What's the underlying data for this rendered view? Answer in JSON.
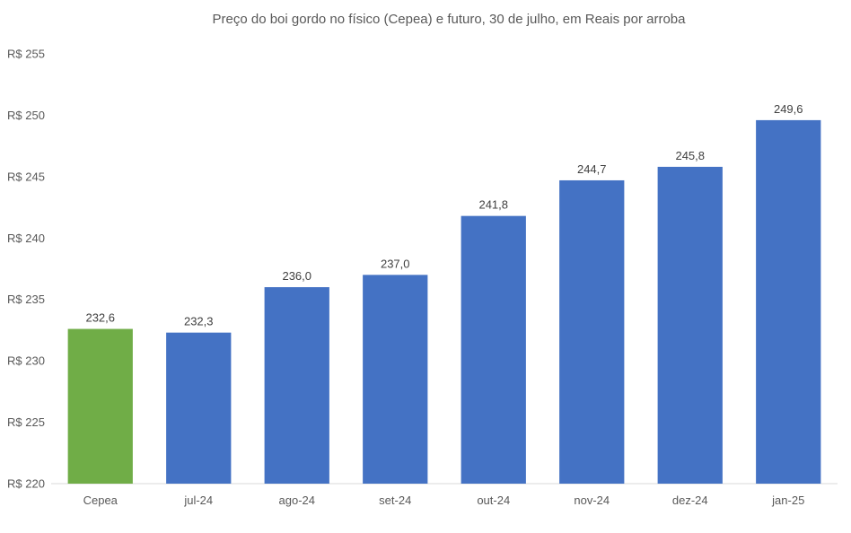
{
  "chart_data": {
    "type": "bar",
    "title": "Preço do boi gordo no físico (Cepea) e futuro, 30 de julho, em Reais por arroba",
    "xlabel": "",
    "ylabel": "",
    "categories": [
      "Cepea",
      "jul-24",
      "ago-24",
      "set-24",
      "out-24",
      "nov-24",
      "dez-24",
      "jan-25"
    ],
    "values": [
      232.6,
      232.3,
      236.0,
      237.0,
      241.8,
      244.7,
      245.8,
      249.6
    ],
    "data_labels": [
      "232,6",
      "232,3",
      "236,0",
      "237,0",
      "241,8",
      "244,7",
      "245,8",
      "249,6"
    ],
    "ylim": [
      220,
      255
    ],
    "y_ticks": [
      220,
      225,
      230,
      235,
      240,
      245,
      250,
      255
    ],
    "y_tick_labels": [
      "R$ 220",
      "R$ 225",
      "R$ 230",
      "R$ 235",
      "R$ 240",
      "R$ 245",
      "R$ 250",
      "R$ 255"
    ],
    "grid": false,
    "legend": "none",
    "colors": {
      "Cepea": "#70AD47",
      "futures": "#4472C4"
    }
  }
}
